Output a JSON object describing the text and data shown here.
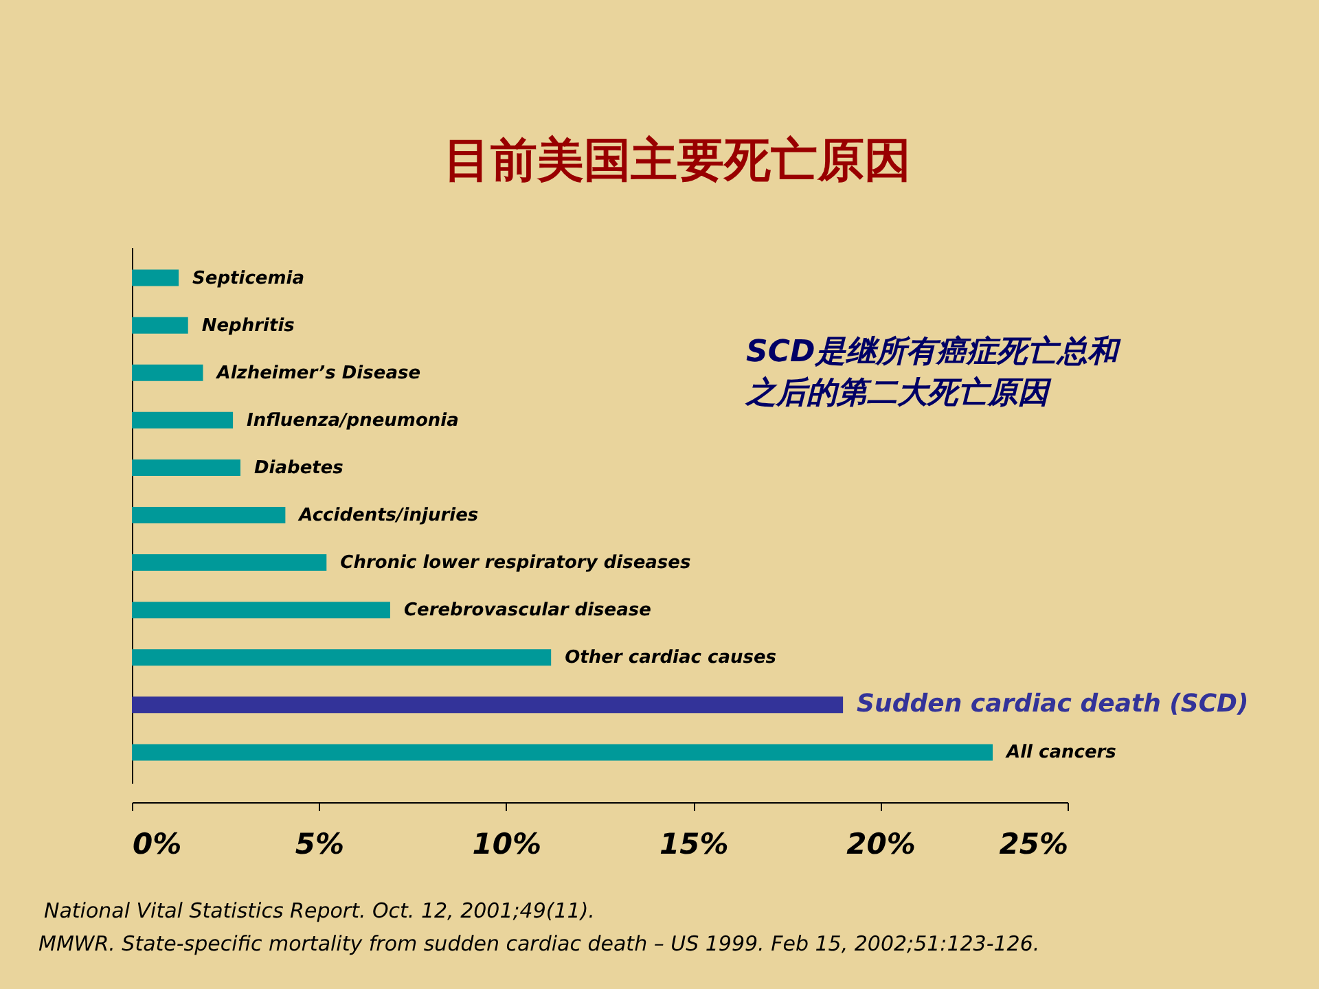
{
  "chart_data": {
    "type": "bar",
    "orientation": "horizontal",
    "title": "目前美国主要死亡原因",
    "categories": [
      "Septicemia",
      "Nephritis",
      "Alzheimer’s Disease",
      "Influenza/pneumonia",
      "Diabetes",
      "Accidents/injuries",
      "Chronic lower respiratory diseases",
      "Cerebrovascular disease",
      "Other cardiac causes",
      "Sudden cardiac death (SCD)",
      "All cancers"
    ],
    "values": [
      1.25,
      1.5,
      1.9,
      2.7,
      2.9,
      4.1,
      5.2,
      6.9,
      11.2,
      19.0,
      23.0
    ],
    "color": "#009999",
    "colors": [
      "#009999",
      "#009999",
      "#009999",
      "#009999",
      "#009999",
      "#009999",
      "#009999",
      "#009999",
      "#009999",
      "#333399",
      "#009999"
    ],
    "xlim": [
      0,
      25
    ],
    "xticks": [
      {
        "value": 0,
        "label": "0%"
      },
      {
        "value": 5,
        "label": "5%"
      },
      {
        "value": 10,
        "label": "10%"
      },
      {
        "value": 15,
        "label": "15%"
      },
      {
        "value": 20,
        "label": "20%"
      },
      {
        "value": 25,
        "label": "25%"
      }
    ],
    "tick_labels": "x",
    "grid": false,
    "legend": false,
    "annotations": [
      "SCD是继所有癌症死亡总和之后的第二大死亡原因",
      "National Vital Statistics Report. Oct. 12, 2001;49(11).",
      "MMWR. State-specific mortality from sudden cardiac death – US 1999. Feb 15, 2002;51:123-126."
    ]
  }
}
